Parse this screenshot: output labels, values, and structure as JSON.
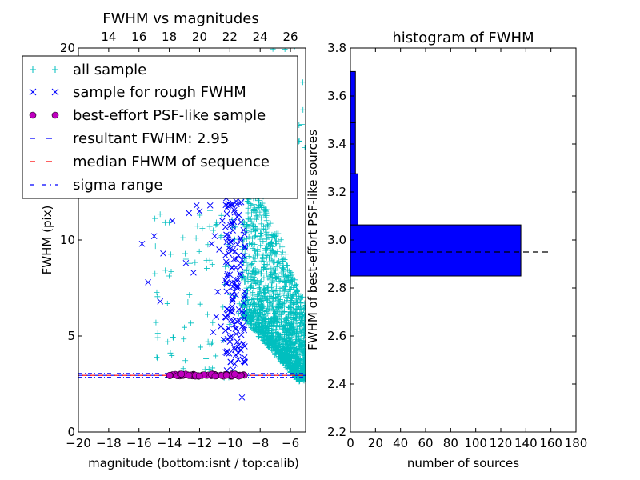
{
  "chart_data": [
    {
      "type": "scatter",
      "title": "FWHM vs magnitudes",
      "xlabel": "magnitude (bottom:isnt / top:calib)",
      "ylabel": "FWHM (pix)",
      "xlim": [
        -20,
        -5
      ],
      "ylim": [
        0,
        20
      ],
      "x_ticks": [
        "−20",
        "−18",
        "−16",
        "−14",
        "−12",
        "−10",
        "−8",
        "−6"
      ],
      "x_tick_values": [
        -20,
        -18,
        -16,
        -14,
        -12,
        -10,
        -8,
        -6
      ],
      "y_ticks": [
        "0",
        "5",
        "10",
        "20"
      ],
      "y_tick_values": [
        0,
        5,
        10,
        20
      ],
      "top_axis": {
        "ticks": [
          "14",
          "16",
          "18",
          "20",
          "22",
          "24",
          "26"
        ],
        "offset": 32
      },
      "legend": {
        "placement": "upper-left",
        "entries": [
          {
            "label": "all sample",
            "marker": "+",
            "color": "#00bfbf"
          },
          {
            "label": "sample for rough FWHM",
            "marker": "x",
            "color": "#0000ff"
          },
          {
            "label": "best-effort PSF-like sample",
            "marker": "o",
            "color": "#bf00bf"
          },
          {
            "label": "resultant FWHM: 2.95",
            "marker": "dash",
            "color": "#0000ff"
          },
          {
            "label": "median FHWM of sequence",
            "marker": "dash",
            "color": "#ff0000"
          },
          {
            "label": "sigma range",
            "marker": "dashdot",
            "color": "#0000ff"
          }
        ]
      },
      "resultant_fwhm": 2.95,
      "median_fwhm": 2.95,
      "sigma_range": [
        2.85,
        3.05
      ],
      "series": [
        {
          "name": "sample for rough FWHM",
          "color": "#0000ff",
          "marker": "x",
          "points": [
            [
              -15.8,
              9.8
            ],
            [
              -15.4,
              7.8
            ],
            [
              -15.0,
              10.2
            ],
            [
              -14.6,
              6.8
            ],
            [
              -14.4,
              9.3
            ],
            [
              -13.8,
              11.0
            ],
            [
              -12.9,
              8.8
            ],
            [
              -12.7,
              11.4
            ],
            [
              -12.4,
              8.3
            ],
            [
              -12.2,
              11.8
            ],
            [
              -12.0,
              11.5
            ],
            [
              -11.3,
              11.8
            ],
            [
              -11.2,
              9.8
            ],
            [
              -11.1,
              5.2
            ],
            [
              -11.0,
              10.2
            ],
            [
              -10.9,
              6.0
            ],
            [
              -10.8,
              7.3
            ],
            [
              -10.7,
              9.5
            ],
            [
              -10.6,
              5.5
            ],
            [
              -10.5,
              11.0
            ],
            [
              -10.4,
              4.8
            ],
            [
              -10.3,
              7.9
            ],
            [
              -10.3,
              9.2
            ],
            [
              -10.2,
              6.4
            ],
            [
              -10.1,
              11.9
            ],
            [
              -10.0,
              8.2
            ],
            [
              -9.9,
              5.0
            ],
            [
              -9.8,
              10.5
            ],
            [
              -9.8,
              6.9
            ],
            [
              -9.7,
              4.4
            ],
            [
              -9.6,
              9.0
            ],
            [
              -9.5,
              7.5
            ],
            [
              -9.5,
              11.2
            ],
            [
              -9.4,
              5.8
            ],
            [
              -9.3,
              8.6
            ],
            [
              -9.3,
              10.1
            ],
            [
              -9.2,
              6.3
            ],
            [
              -9.1,
              4.6
            ],
            [
              -9.0,
              7.1
            ],
            [
              -9.0,
              9.6
            ],
            [
              -9.2,
              1.8
            ]
          ]
        },
        {
          "name": "best-effort PSF-like sample",
          "color": "#bf00bf",
          "marker": "o",
          "points": [
            [
              -13.9,
              2.95
            ],
            [
              -13.6,
              3.0
            ],
            [
              -13.3,
              2.92
            ],
            [
              -13.0,
              2.98
            ],
            [
              -12.7,
              2.94
            ],
            [
              -12.4,
              3.0
            ],
            [
              -12.1,
              2.93
            ],
            [
              -11.8,
              2.97
            ],
            [
              -11.5,
              2.95
            ],
            [
              -11.2,
              3.01
            ],
            [
              -10.9,
              2.92
            ],
            [
              -10.6,
              2.96
            ],
            [
              -10.3,
              2.99
            ],
            [
              -10.0,
              2.94
            ],
            [
              -9.7,
              2.97
            ],
            [
              -9.4,
              2.93
            ],
            [
              -9.1,
              2.98
            ]
          ]
        }
      ]
    },
    {
      "type": "bar",
      "orientation": "horizontal",
      "title": "histogram of FWHM",
      "xlabel": "number of sources",
      "ylabel": "FWHM of best-effort PSF-like sources",
      "xlim": [
        0,
        180
      ],
      "ylim": [
        2.2,
        3.8
      ],
      "x_ticks": [
        "0",
        "20",
        "40",
        "60",
        "80",
        "100",
        "120",
        "140",
        "160",
        "180"
      ],
      "x_tick_values": [
        0,
        20,
        40,
        60,
        80,
        100,
        120,
        140,
        160,
        180
      ],
      "y_ticks": [
        "2.2",
        "2.4",
        "2.6",
        "2.8",
        "3.0",
        "3.2",
        "3.4",
        "3.6",
        "3.8"
      ],
      "y_tick_values": [
        2.2,
        2.4,
        2.6,
        2.8,
        3.0,
        3.2,
        3.4,
        3.6,
        3.8
      ],
      "bin_edges": [
        2.85,
        3.063,
        3.276,
        3.489,
        3.702
      ],
      "counts": [
        136,
        6,
        4,
        4
      ],
      "bar_color": "#0000ff",
      "reference_line": 2.95
    }
  ]
}
